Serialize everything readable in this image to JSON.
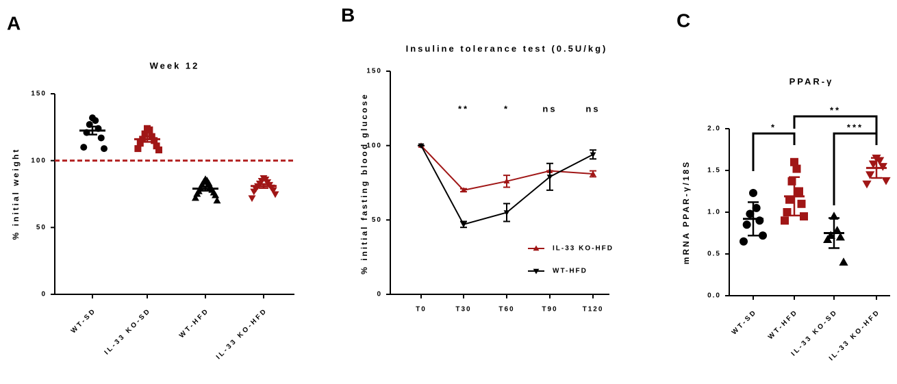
{
  "chart_data": [
    {
      "type": "dotplot",
      "panel": "A",
      "title": "Week 12",
      "y_label": "% initial weight",
      "categories": [
        "WT-SD",
        "IL-33 KO-SD",
        "WT-HFD",
        "IL-33 KO-HFD"
      ],
      "colors": [
        "#000000",
        "#a01616",
        "#000000",
        "#a01616"
      ],
      "markers": [
        "circle",
        "square",
        "triangle",
        "triangle-down"
      ],
      "points": [
        [
          132,
          130,
          127,
          124,
          121,
          117,
          110,
          109
        ],
        [
          124,
          123,
          120,
          118,
          116,
          115,
          113,
          111,
          109,
          108
        ],
        [
          86,
          85,
          84,
          83,
          82,
          80,
          79,
          78,
          77,
          76,
          75,
          74,
          72,
          70
        ],
        [
          87,
          86,
          85,
          84,
          83,
          82,
          81,
          80,
          79,
          78,
          77,
          75,
          72
        ]
      ],
      "means": [
        122.5,
        116,
        79,
        81
      ],
      "errors": [
        3,
        2,
        1.5,
        1.5
      ],
      "reference_line": {
        "value": 100,
        "color": "#b22222",
        "style": "dashed"
      },
      "ylim": [
        0,
        150
      ],
      "yticks": [
        0,
        50,
        100,
        150
      ]
    },
    {
      "type": "line",
      "panel": "B",
      "title": "Insuline tolerance test (0.5U/kg)",
      "y_label": "% initial fasting blood glucose",
      "categories": [
        "T0",
        "T30",
        "T60",
        "T90",
        "T120"
      ],
      "series": [
        {
          "name": "IL-33 KO-HFD",
          "color": "#a01616",
          "marker": "triangle",
          "values": [
            100,
            70,
            76,
            83,
            81
          ],
          "errors": [
            0,
            1,
            4,
            0,
            2
          ]
        },
        {
          "name": "WT-HFD",
          "color": "#000000",
          "marker": "triangle-down",
          "values": [
            100,
            47,
            55,
            79,
            94
          ],
          "errors": [
            0,
            2,
            6,
            9,
            3
          ]
        }
      ],
      "annotations": [
        null,
        "**",
        "*",
        "ns",
        "ns"
      ],
      "ylim": [
        0,
        150
      ],
      "yticks": [
        0,
        50,
        100,
        150
      ]
    },
    {
      "type": "dotplot",
      "panel": "C",
      "title": "PPAR-γ",
      "y_label": "mRNA PPAR-γ/18S",
      "categories": [
        "WT-SD",
        "WT-HFD",
        "IL-33 KO-SD",
        "IL-33 KO-HFD"
      ],
      "colors": [
        "#000000",
        "#a01616",
        "#000000",
        "#a01616"
      ],
      "markers": [
        "circle",
        "square",
        "triangle",
        "triangle-down"
      ],
      "points": [
        [
          1.23,
          1.05,
          0.98,
          0.9,
          0.85,
          0.72,
          0.65
        ],
        [
          1.6,
          1.52,
          1.37,
          1.25,
          1.15,
          1.1,
          1.0,
          0.95,
          0.9
        ],
        [
          0.95,
          0.78,
          0.72,
          0.7,
          0.67,
          0.4
        ],
        [
          1.65,
          1.62,
          1.58,
          1.55,
          1.45,
          1.38,
          1.34
        ]
      ],
      "means": [
        0.92,
        1.19,
        0.75,
        1.53
      ],
      "errors": [
        0.2,
        0.23,
        0.18,
        0.12
      ],
      "comparisons": [
        {
          "groups": [
            0,
            1
          ],
          "label": "*"
        },
        {
          "groups": [
            1,
            3
          ],
          "label": "**"
        },
        {
          "groups": [
            2,
            3
          ],
          "label": "***"
        }
      ],
      "ylim": [
        0,
        2.0
      ],
      "yticks": [
        {
          "value": 0.0,
          "label": "0.0"
        },
        0.5,
        {
          "value": 1.0,
          "label": "1.0"
        },
        1.5,
        {
          "value": 2.0,
          "label": "2.0"
        }
      ]
    }
  ]
}
